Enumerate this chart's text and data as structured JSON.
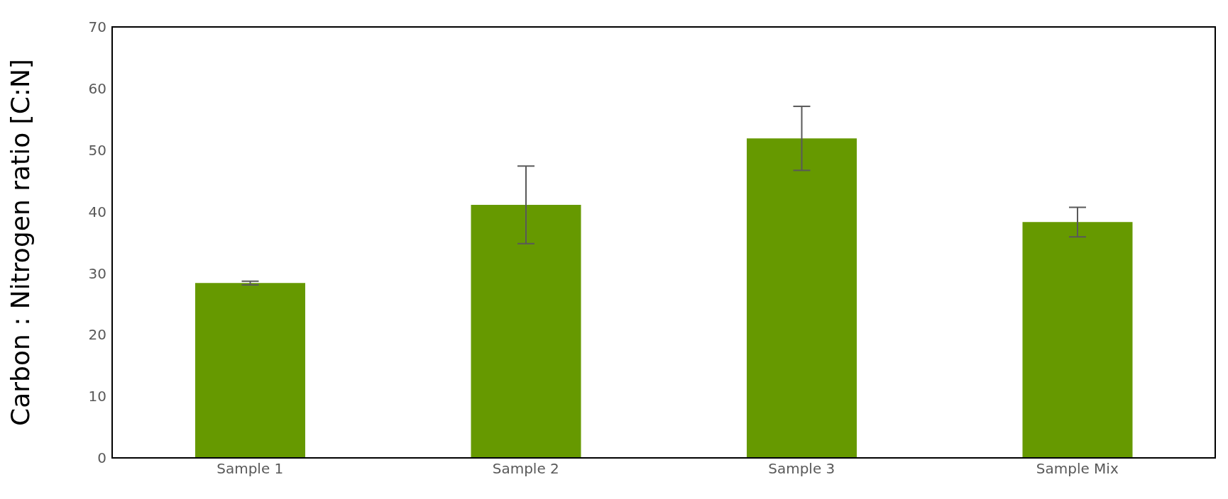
{
  "chart_data": {
    "type": "bar",
    "ylabel": "Carbon : Nitrogen ratio [C:N]",
    "categories": [
      "Sample 1",
      "Sample 2",
      "Sample 3",
      "Sample Mix"
    ],
    "values": [
      28.4,
      41.1,
      51.9,
      38.3
    ],
    "errors": [
      0.3,
      6.3,
      5.2,
      2.4
    ],
    "color": "#669900",
    "ylim": [
      0,
      70
    ],
    "yticks": [
      0,
      10,
      20,
      30,
      40,
      50,
      60,
      70
    ],
    "grid": false
  }
}
